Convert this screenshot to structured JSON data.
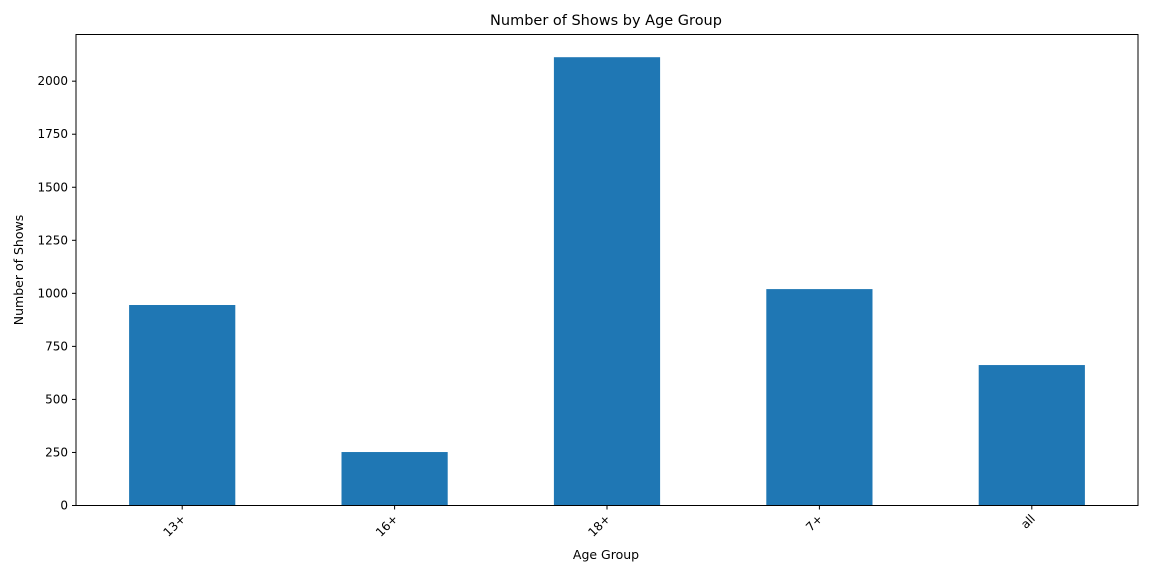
{
  "chart_data": {
    "type": "bar",
    "title": "Number of Shows by Age Group",
    "xlabel": "Age Group",
    "ylabel": "Number of Shows",
    "categories": [
      "13+",
      "16+",
      "18+",
      "7+",
      "all"
    ],
    "values": [
      945,
      252,
      2113,
      1020,
      662
    ],
    "ylim": [
      0,
      2220
    ],
    "yticks": [
      0,
      250,
      500,
      750,
      1000,
      1250,
      1500,
      1750,
      2000
    ],
    "bar_color": "#1f77b4",
    "grid": false,
    "legend": false,
    "xtick_rotation": 45
  }
}
